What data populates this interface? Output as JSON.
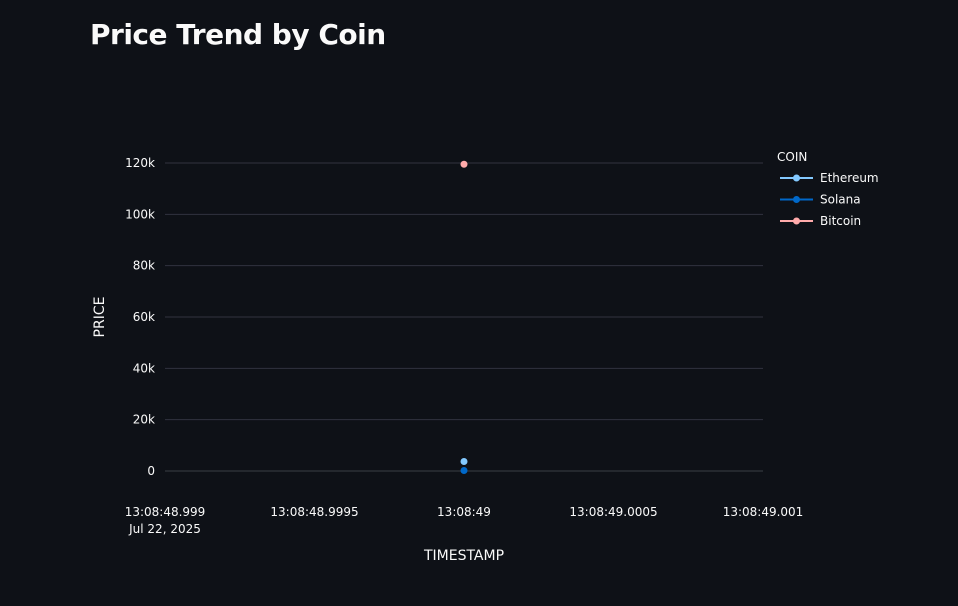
{
  "page": {
    "title": "Price Trend by Coin"
  },
  "chart_data": {
    "type": "scatter",
    "title": "",
    "xlabel": "TIMESTAMP",
    "ylabel": "PRICE",
    "ylim": [
      0,
      120000
    ],
    "yticks": [
      {
        "value": 0,
        "label": "0"
      },
      {
        "value": 20000,
        "label": "20k"
      },
      {
        "value": 40000,
        "label": "40k"
      },
      {
        "value": 60000,
        "label": "60k"
      },
      {
        "value": 80000,
        "label": "80k"
      },
      {
        "value": 100000,
        "label": "100k"
      },
      {
        "value": 120000,
        "label": "120k"
      }
    ],
    "xlim": [
      "13:08:48.999",
      "13:08:49.001"
    ],
    "xticks": [
      {
        "value": "13:08:48.999",
        "label": "13:08:48.999",
        "sublabel": "Jul 22, 2025"
      },
      {
        "value": "13:08:48.9995",
        "label": "13:08:48.9995"
      },
      {
        "value": "13:08:49",
        "label": "13:08:49"
      },
      {
        "value": "13:08:49.0005",
        "label": "13:08:49.0005"
      },
      {
        "value": "13:08:49.001",
        "label": "13:08:49.001"
      }
    ],
    "grid": true,
    "legend": {
      "title": "COIN",
      "position": "right"
    },
    "series": [
      {
        "name": "Ethereum",
        "color": "#83c9ff",
        "points": [
          {
            "x": "13:08:49",
            "y": 3700
          }
        ]
      },
      {
        "name": "Solana",
        "color": "#0068c9",
        "points": [
          {
            "x": "13:08:49",
            "y": 200
          }
        ]
      },
      {
        "name": "Bitcoin",
        "color": "#ffabab",
        "points": [
          {
            "x": "13:08:49",
            "y": 119500
          }
        ]
      }
    ]
  }
}
